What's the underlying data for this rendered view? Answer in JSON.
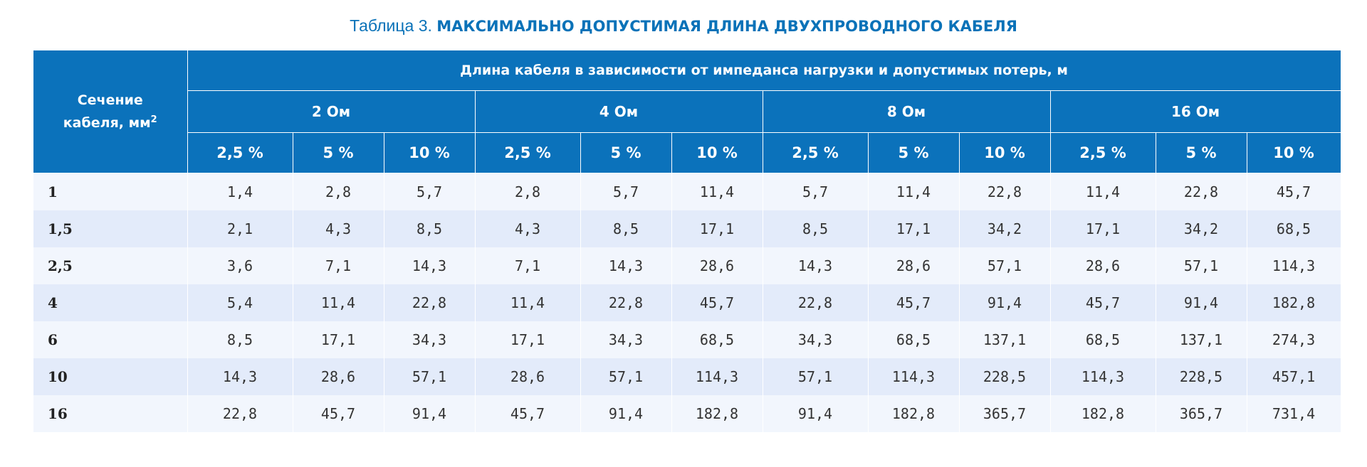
{
  "caption": {
    "prefix": "Таблица 3.",
    "title": "МАКСИМАЛЬНО ДОПУСТИМАЯ ДЛИНА ДВУХПРОВОДНОГО КАБЕЛЯ"
  },
  "table": {
    "section_header_line1": "Сечение",
    "section_header_line2": "кабеля, мм",
    "section_header_sup": "2",
    "group_header": "Длина кабеля в зависимости от импеданса нагрузки и допустимых потерь, м",
    "impedances": [
      "2 Ом",
      "4 Ом",
      "8 Ом",
      "16 Ом"
    ],
    "losses": [
      "2,5 %",
      "5 %",
      "10 %"
    ],
    "rows": [
      {
        "section": "1",
        "values": [
          "1,4",
          "2,8",
          "5,7",
          "2,8",
          "5,7",
          "11,4",
          "5,7",
          "11,4",
          "22,8",
          "11,4",
          "22,8",
          "45,7"
        ]
      },
      {
        "section": "1,5",
        "values": [
          "2,1",
          "4,3",
          "8,5",
          "4,3",
          "8,5",
          "17,1",
          "8,5",
          "17,1",
          "34,2",
          "17,1",
          "34,2",
          "68,5"
        ]
      },
      {
        "section": "2,5",
        "values": [
          "3,6",
          "7,1",
          "14,3",
          "7,1",
          "14,3",
          "28,6",
          "14,3",
          "28,6",
          "57,1",
          "28,6",
          "57,1",
          "114,3"
        ]
      },
      {
        "section": "4",
        "values": [
          "5,4",
          "11,4",
          "22,8",
          "11,4",
          "22,8",
          "45,7",
          "22,8",
          "45,7",
          "91,4",
          "45,7",
          "91,4",
          "182,8"
        ]
      },
      {
        "section": "6",
        "values": [
          "8,5",
          "17,1",
          "34,3",
          "17,1",
          "34,3",
          "68,5",
          "34,3",
          "68,5",
          "137,1",
          "68,5",
          "137,1",
          "274,3"
        ]
      },
      {
        "section": "10",
        "values": [
          "14,3",
          "28,6",
          "57,1",
          "28,6",
          "57,1",
          "114,3",
          "57,1",
          "114,3",
          "228,5",
          "114,3",
          "228,5",
          "457,1"
        ]
      },
      {
        "section": "16",
        "values": [
          "22,8",
          "45,7",
          "91,4",
          "45,7",
          "91,4",
          "182,8",
          "91,4",
          "182,8",
          "365,7",
          "182,8",
          "365,7",
          "731,4"
        ]
      }
    ]
  },
  "colors": {
    "caption_text": "#0a72b8",
    "header_bg": "#0b72bb",
    "header_text": "#ffffff",
    "row_light": "#f2f6fd",
    "row_dark": "#e3ebfa"
  }
}
